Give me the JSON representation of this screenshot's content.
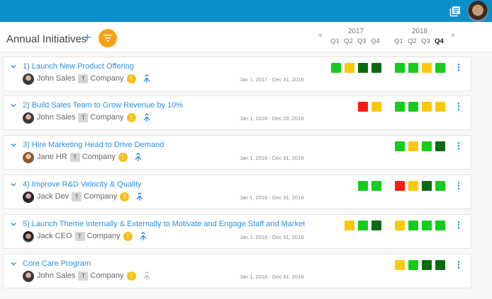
{
  "topbar": {
    "background": "#0a8fcb",
    "icons": [
      "documents-icon",
      "user-avatar"
    ]
  },
  "header": {
    "title": "Annual Initiatives",
    "add_label": "+",
    "filter_icon": "filter-icon",
    "accent": "#f9a20f"
  },
  "timeline": {
    "prev_arrow": "◀",
    "next_arrow": "▶",
    "years": [
      {
        "label": "2017",
        "quarters": [
          "Q1",
          "Q2",
          "Q3",
          "Q4"
        ]
      },
      {
        "label": "2018",
        "quarters": [
          "Q1",
          "Q2",
          "Q3",
          "Q4"
        ]
      }
    ],
    "current_quarter": "2018 Q4"
  },
  "status_colors": {
    "green": "#14cc1c",
    "dark_green": "#0a6a0e",
    "yellow": "#fbc90a",
    "red": "#fb1a10"
  },
  "initiatives": [
    {
      "name": "1) Launch New Product Offering",
      "owner": "John Sales",
      "team_badge": "T",
      "team": "Company",
      "warning": "!",
      "dates": "Jan 1, 2017 - Dec 31, 2018",
      "status_2017": [
        "green",
        "yellow",
        "dark_green",
        "dark_green"
      ],
      "status_2018": [
        "green",
        "green",
        "yellow",
        "green"
      ]
    },
    {
      "name": "2) Build Sales Team to Grow Revenue by 10%",
      "owner": "John Sales",
      "team_badge": "T",
      "team": "Company",
      "warning": "!",
      "dates": "Jan 1, 2018 - Dec 29, 2018",
      "status_2017": [
        null,
        null,
        "red",
        "yellow"
      ],
      "status_2018": [
        "green",
        "green",
        "yellow",
        "yellow"
      ]
    },
    {
      "name": "3) Hire Marketing Head to Drive Demand",
      "owner": "Jane HR",
      "team_badge": "T",
      "team": "Company",
      "warning": "!",
      "dates": "Jan 1, 2018 - Dec 31, 2018",
      "status_2017": [
        null,
        null,
        null,
        null
      ],
      "status_2018": [
        "green",
        "yellow",
        "green",
        "dark_green"
      ]
    },
    {
      "name": "4) Improve R&D Velocity & Quality",
      "owner": "Jack Dev",
      "team_badge": "T",
      "team": "Company",
      "warning": "!",
      "dates": "Jan 1, 2018 - Dec 31, 2018",
      "status_2017": [
        null,
        null,
        "green",
        "green"
      ],
      "status_2018": [
        "red",
        "yellow",
        "dark_green",
        "green"
      ]
    },
    {
      "name": "5) Launch Theme Internally & Externally to Motivate and Engage Staff and Market",
      "owner": "Jack CEO",
      "team_badge": "T",
      "team": "Company",
      "warning": "!",
      "dates": "Jan 1, 2018 - Dec 31, 2018",
      "status_2017": [
        null,
        "yellow",
        "green",
        "dark_green"
      ],
      "status_2018": [
        "yellow",
        "green",
        "green",
        "green"
      ]
    },
    {
      "name": "Core Care Program",
      "owner": "John Sales",
      "team_badge": "T",
      "team": "Company",
      "warning": "!",
      "dates": "Jan 1, 2018 - Dec 31, 2018",
      "status_2017": [
        null,
        null,
        null,
        null
      ],
      "status_2018": [
        "yellow",
        "green",
        "dark_green",
        "dark_green"
      ],
      "align_icon_muted": true
    }
  ]
}
